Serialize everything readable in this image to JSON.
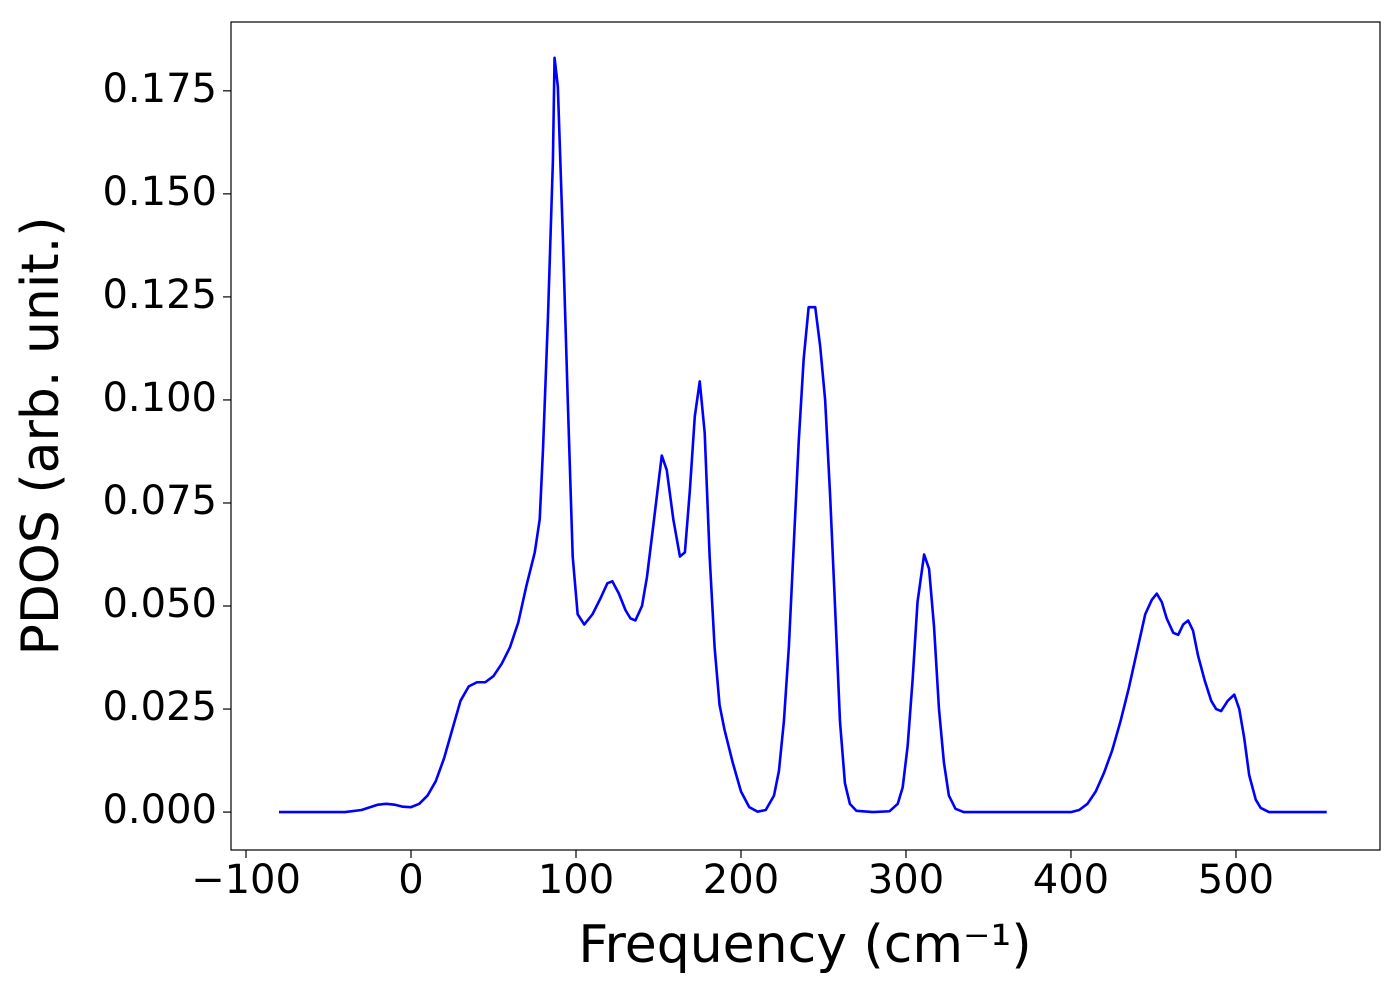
{
  "chart_data": {
    "type": "line",
    "xlabel": "Frequency (cm⁻¹)",
    "ylabel": "PDOS (arb. unit.)",
    "x": [
      -80,
      -40,
      -30,
      -20,
      -15,
      -10,
      -5,
      0,
      5,
      10,
      15,
      20,
      25,
      30,
      35,
      40,
      45,
      50,
      55,
      60,
      65,
      70,
      75,
      78,
      80,
      83,
      86,
      87,
      89,
      92,
      95,
      98,
      101,
      105,
      110,
      115,
      119,
      122,
      126,
      130,
      133,
      136,
      140,
      143,
      147,
      150,
      152,
      155,
      159,
      163,
      166,
      169,
      172,
      175,
      178,
      181,
      184,
      187,
      190,
      195,
      200,
      205,
      210,
      215,
      220,
      223,
      226,
      229,
      232,
      235,
      238,
      241,
      245,
      248,
      251,
      254,
      257,
      260,
      263,
      266,
      270,
      280,
      290,
      295,
      298,
      301,
      304,
      307,
      311,
      314,
      317,
      320,
      323,
      326,
      330,
      335,
      400,
      405,
      410,
      415,
      420,
      425,
      430,
      435,
      440,
      445,
      449,
      452,
      455,
      458,
      462,
      465,
      468,
      471,
      474,
      477,
      481,
      485,
      488,
      491,
      495,
      499,
      502,
      505,
      508,
      512,
      515,
      520,
      555
    ],
    "series": [
      {
        "color": "#0000ff",
        "values": [
          0,
          0,
          0.0005,
          0.0018,
          0.002,
          0.0018,
          0.0013,
          0.0012,
          0.002,
          0.004,
          0.0075,
          0.013,
          0.02,
          0.027,
          0.0305,
          0.0315,
          0.0315,
          0.033,
          0.036,
          0.04,
          0.046,
          0.055,
          0.063,
          0.071,
          0.088,
          0.12,
          0.158,
          0.183,
          0.176,
          0.14,
          0.1,
          0.062,
          0.048,
          0.0455,
          0.048,
          0.052,
          0.0555,
          0.056,
          0.053,
          0.049,
          0.047,
          0.0465,
          0.05,
          0.057,
          0.07,
          0.08,
          0.0865,
          0.083,
          0.071,
          0.062,
          0.063,
          0.078,
          0.096,
          0.1045,
          0.092,
          0.062,
          0.04,
          0.026,
          0.02,
          0.012,
          0.005,
          0.0012,
          0.0001,
          0.0005,
          0.004,
          0.01,
          0.022,
          0.04,
          0.065,
          0.09,
          0.11,
          0.1225,
          0.1225,
          0.113,
          0.1,
          0.077,
          0.05,
          0.022,
          0.007,
          0.002,
          0.0003,
          0,
          0.0002,
          0.002,
          0.006,
          0.016,
          0.032,
          0.051,
          0.0625,
          0.059,
          0.045,
          0.025,
          0.012,
          0.004,
          0.0008,
          0,
          0,
          0.0005,
          0.002,
          0.005,
          0.0095,
          0.015,
          0.022,
          0.03,
          0.039,
          0.048,
          0.0515,
          0.053,
          0.051,
          0.047,
          0.0435,
          0.043,
          0.0455,
          0.0465,
          0.044,
          0.038,
          0.032,
          0.027,
          0.025,
          0.0245,
          0.027,
          0.0285,
          0.025,
          0.018,
          0.009,
          0.003,
          0.001,
          0,
          0
        ]
      }
    ],
    "xlim": [
      -109.1,
      587.3
    ],
    "ylim": [
      -0.0092,
      0.1917
    ],
    "xticks": [
      {
        "value": -100,
        "label": "−100"
      },
      0,
      100,
      200,
      300,
      400,
      500
    ],
    "yticks": [
      {
        "value": 0,
        "label": "0.000"
      },
      {
        "value": 0.025,
        "label": "0.025"
      },
      {
        "value": 0.05,
        "label": "0.050"
      },
      {
        "value": 0.075,
        "label": "0.075"
      },
      {
        "value": 0.1,
        "label": "0.100"
      },
      {
        "value": 0.125,
        "label": "0.125"
      },
      {
        "value": 0.15,
        "label": "0.150"
      },
      {
        "value": 0.175,
        "label": "0.175"
      }
    ],
    "grid": false
  }
}
